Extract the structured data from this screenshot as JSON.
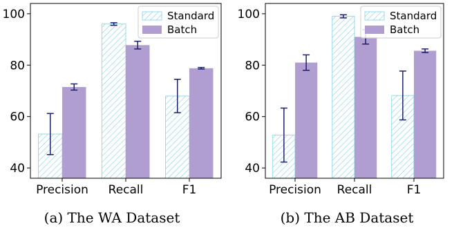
{
  "chart_data": [
    {
      "type": "bar",
      "caption": "(a) The WA Dataset",
      "categories": [
        "Precision",
        "Recall",
        "F1"
      ],
      "series": [
        {
          "name": "Standard",
          "values": [
            53.2,
            96.0,
            68.0
          ],
          "errors": [
            8.0,
            0.5,
            6.5
          ]
        },
        {
          "name": "Batch",
          "values": [
            71.5,
            87.8,
            78.8
          ],
          "errors": [
            1.2,
            1.5,
            0.3
          ]
        }
      ],
      "ylim": [
        36,
        104
      ],
      "yticks": [
        40,
        60,
        80,
        100
      ],
      "legend": "top-right",
      "grid": false,
      "xlabel": "",
      "ylabel": ""
    },
    {
      "type": "bar",
      "caption": "(b) The AB Dataset",
      "categories": [
        "Precision",
        "Recall",
        "F1"
      ],
      "series": [
        {
          "name": "Standard",
          "values": [
            52.8,
            99.0,
            68.2
          ],
          "errors": [
            10.5,
            0.6,
            9.5
          ]
        },
        {
          "name": "Batch",
          "values": [
            81.0,
            91.0,
            85.6
          ],
          "errors": [
            3.0,
            2.8,
            0.7
          ]
        }
      ],
      "ylim": [
        36,
        104
      ],
      "yticks": [
        40,
        60,
        80,
        100
      ],
      "legend": "top-right",
      "grid": false,
      "xlabel": "",
      "ylabel": ""
    }
  ],
  "colors": {
    "standard_hatch": "#7fd0e2",
    "batch_fill": "#b09ed1",
    "error_bar": "#1b1f6e",
    "axis": "#000000"
  }
}
